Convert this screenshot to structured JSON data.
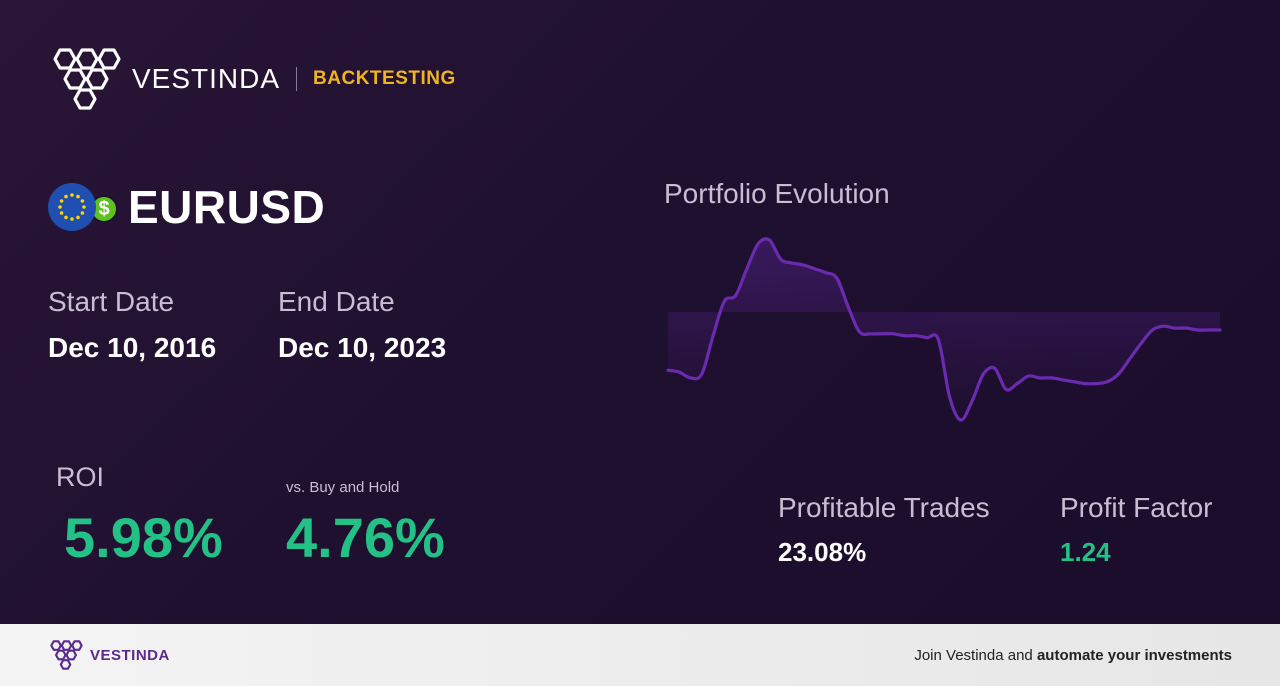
{
  "header": {
    "brand": "VESTINDA",
    "section": "BACKTESTING",
    "logo_icon": "vestinda-logo-icon"
  },
  "asset": {
    "symbol": "EURUSD",
    "flag_icons": [
      "eu-flag-icon",
      "usd-dollar-icon"
    ],
    "usd_glyph": "$"
  },
  "dates": {
    "start_label": "Start Date",
    "start_value": "Dec 10, 2016",
    "end_label": "End Date",
    "end_value": "Dec 10, 2023"
  },
  "roi": {
    "label": "ROI",
    "value": "5.98%",
    "bh_label": "vs. Buy and Hold",
    "bh_value": "4.76%"
  },
  "chart": {
    "title": "Portfolio Evolution"
  },
  "stats": {
    "profitable_label": "Profitable Trades",
    "profitable_value": "23.08%",
    "pf_label": "Profit Factor",
    "pf_value": "1.24"
  },
  "footer": {
    "brand": "VESTINDA",
    "cta_prefix": "Join Vestinda and ",
    "cta_bold": "automate your investments"
  },
  "colors": {
    "accent_gold": "#f0b323",
    "positive_green": "#23c186",
    "line_purple": "#6a2bb0",
    "bg": "#1f1030"
  },
  "chart_data": {
    "type": "line",
    "title": "Portfolio Evolution",
    "xlabel": "",
    "ylabel": "",
    "grid": false,
    "legend": "none",
    "x": [
      0,
      1,
      2,
      3,
      4,
      5,
      6,
      7,
      8,
      9,
      10,
      11,
      12,
      13,
      14,
      15,
      16,
      17,
      18,
      19,
      20,
      21,
      22,
      23,
      24,
      25,
      26,
      27,
      28,
      29,
      30,
      31,
      32,
      33,
      34,
      35,
      36,
      37,
      38,
      39,
      40,
      41,
      42,
      43,
      44,
      45,
      46,
      47,
      48,
      49
    ],
    "values": [
      102,
      101,
      98,
      100,
      120,
      138,
      141,
      155,
      168,
      170,
      160,
      158,
      157,
      155,
      153,
      150,
      135,
      122,
      121,
      121,
      121,
      120,
      120,
      119,
      118,
      88,
      76,
      86,
      100,
      103,
      92,
      95,
      99,
      98,
      98,
      97,
      96,
      95,
      95,
      96,
      100,
      108,
      116,
      123,
      125,
      124,
      124,
      123,
      123,
      123
    ]
  }
}
